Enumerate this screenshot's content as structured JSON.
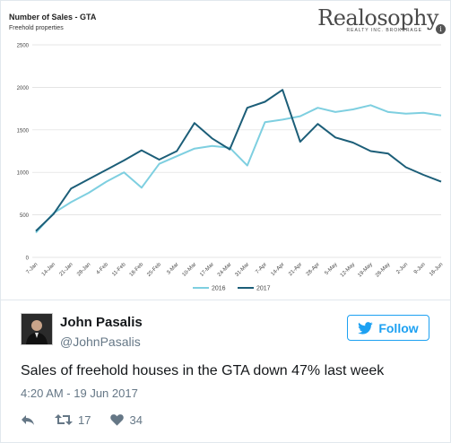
{
  "chart": {
    "title": "Number of Sales - GTA",
    "subtitle": "Freehold properties"
  },
  "brand": {
    "name": "Realosophy",
    "tagline": "REALTY INC. BROKERAGE"
  },
  "chart_data": {
    "type": "line",
    "title": "Number of Sales - GTA",
    "subtitle": "Freehold properties",
    "ylim": [
      0,
      2500
    ],
    "yticks": [
      0,
      500,
      1000,
      1500,
      2000,
      2500
    ],
    "grid": true,
    "legend_position": "bottom",
    "categories": [
      "7-Jan",
      "14-Jan",
      "21-Jan",
      "28-Jan",
      "4-Feb",
      "11-Feb",
      "18-Feb",
      "25-Feb",
      "3-Mar",
      "10-Mar",
      "17-Mar",
      "24-Mar",
      "31-Mar",
      "7-Apr",
      "14-Apr",
      "21-Apr",
      "28-Apr",
      "5-May",
      "12-May",
      "19-May",
      "26-May",
      "2-Jun",
      "9-Jun",
      "16-Jun"
    ],
    "series": [
      {
        "name": "2016",
        "color": "#7ecfe0",
        "values": [
          290,
          520,
          650,
          760,
          890,
          1000,
          820,
          1100,
          1190,
          1280,
          1310,
          1290,
          1080,
          1590,
          1620,
          1660,
          1760,
          1710,
          1740,
          1790,
          1710,
          1690,
          1700,
          1670
        ]
      },
      {
        "name": "2017",
        "color": "#1c5e78",
        "values": [
          310,
          510,
          810,
          920,
          1030,
          1140,
          1260,
          1150,
          1250,
          1580,
          1400,
          1270,
          1760,
          1830,
          1970,
          1360,
          1570,
          1410,
          1350,
          1250,
          1220,
          1060,
          970,
          890
        ]
      }
    ]
  },
  "tweet": {
    "author_name": "John Pasalis",
    "handle": "@JohnPasalis",
    "follow_label": "Follow",
    "text": "Sales of freehold houses in the GTA down 47% last week",
    "timestamp": "4:20 AM - 19 Jun 2017",
    "retweets": "17",
    "likes": "34"
  },
  "colors": {
    "twitter_blue": "#1da1f2",
    "muted": "#657786"
  },
  "icons": [
    "reply-icon",
    "retweet-icon",
    "heart-icon",
    "twitter-bird-icon"
  ]
}
